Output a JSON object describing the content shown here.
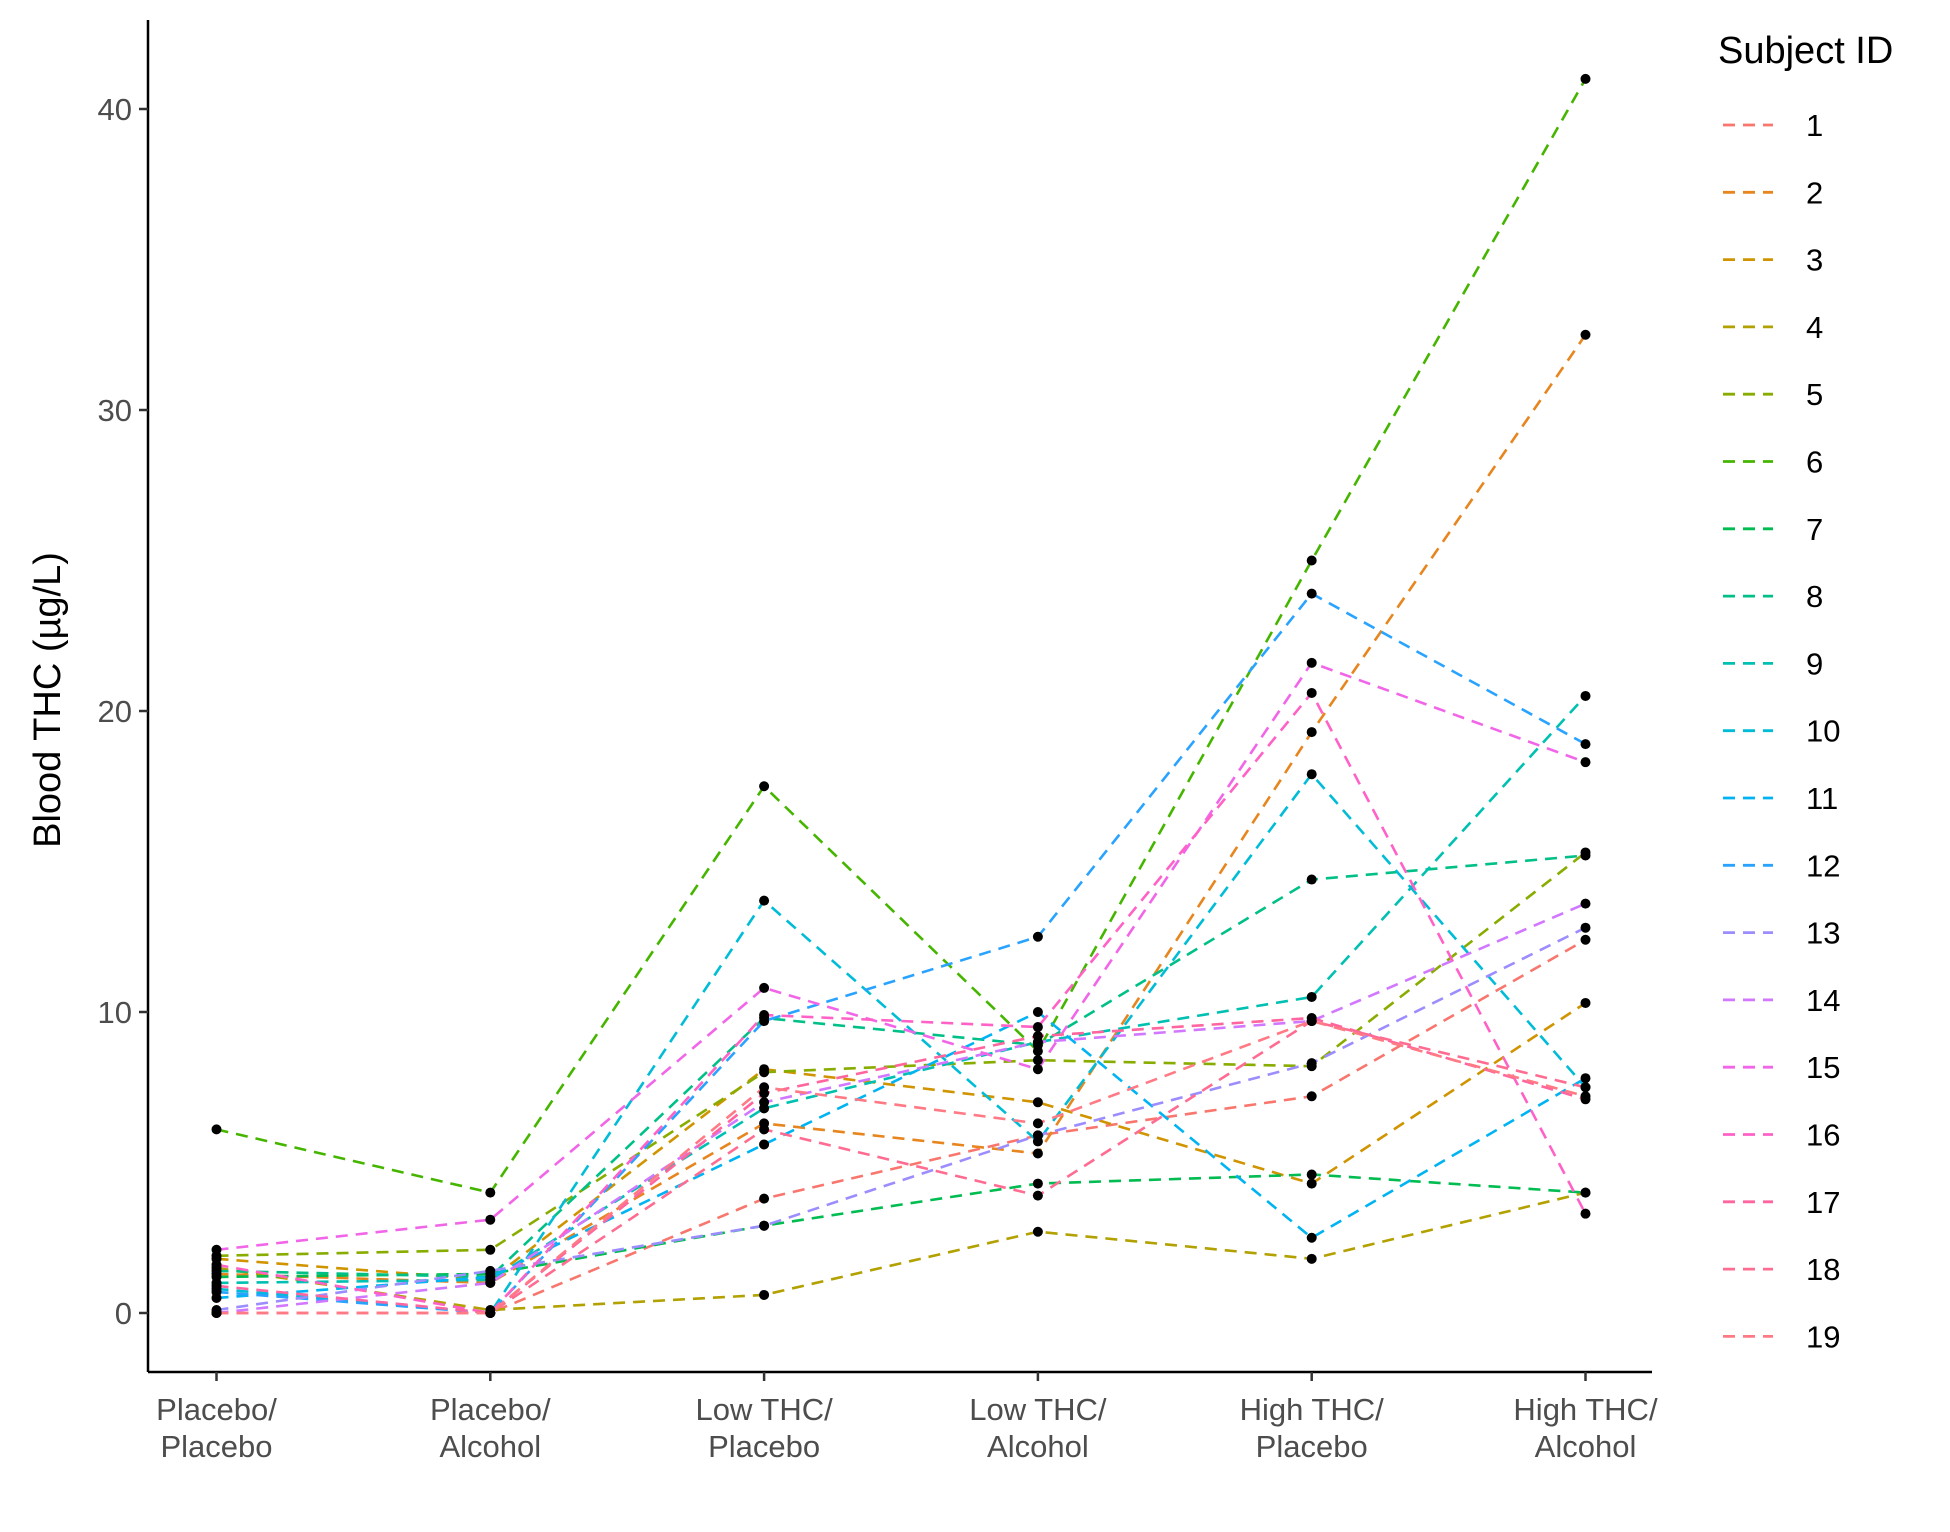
{
  "chart_data": {
    "type": "line",
    "ylabel": "Blood THC (µg/L)",
    "xlabel": "",
    "ylim": [
      -2,
      43
    ],
    "yticks": [
      0,
      10,
      20,
      30,
      40
    ],
    "grid": false,
    "legend_position": "right",
    "legend_title": "Subject ID",
    "line_style": "dashed",
    "marker_color": "#000000",
    "categories": [
      [
        "Placebo/",
        "Placebo"
      ],
      [
        "Placebo/",
        "Alcohol"
      ],
      [
        "Low THC/",
        "Placebo"
      ],
      [
        "Low THC/",
        "Alcohol"
      ],
      [
        "High THC/",
        "Placebo"
      ],
      [
        "High THC/",
        "Alcohol"
      ]
    ],
    "series": [
      {
        "name": "1",
        "color": "#F8766D",
        "values": [
          0.0,
          0.0,
          3.8,
          5.9,
          7.2,
          12.4
        ]
      },
      {
        "name": "2",
        "color": "#E7851E",
        "values": [
          1.3,
          1.0,
          6.3,
          5.3,
          19.3,
          32.5
        ]
      },
      {
        "name": "3",
        "color": "#D09400",
        "values": [
          1.8,
          1.1,
          8.1,
          7.0,
          4.3,
          10.3
        ]
      },
      {
        "name": "4",
        "color": "#B2A100",
        "values": [
          1.5,
          0.1,
          0.6,
          2.7,
          1.8,
          4.0
        ]
      },
      {
        "name": "5",
        "color": "#89AC00",
        "values": [
          1.9,
          2.1,
          8.0,
          8.4,
          8.2,
          15.3
        ]
      },
      {
        "name": "6",
        "color": "#45B500",
        "values": [
          6.1,
          4.0,
          17.5,
          8.7,
          25.0,
          41.0
        ]
      },
      {
        "name": "7",
        "color": "#00BC51",
        "values": [
          1.2,
          1.3,
          2.9,
          4.3,
          4.6,
          4.0
        ]
      },
      {
        "name": "8",
        "color": "#00C087",
        "values": [
          1.4,
          1.2,
          9.8,
          8.9,
          14.4,
          15.2
        ]
      },
      {
        "name": "9",
        "color": "#00C0B2",
        "values": [
          1.0,
          1.1,
          6.8,
          9.0,
          10.5,
          20.5
        ]
      },
      {
        "name": "10",
        "color": "#00BCD6",
        "values": [
          0.8,
          0.0,
          13.7,
          5.7,
          17.9,
          7.5
        ]
      },
      {
        "name": "11",
        "color": "#00B3F2",
        "values": [
          0.5,
          1.2,
          5.6,
          10.0,
          2.5,
          7.8
        ]
      },
      {
        "name": "12",
        "color": "#29A3FF",
        "values": [
          0.7,
          0.0,
          9.7,
          12.5,
          23.9,
          18.9
        ]
      },
      {
        "name": "13",
        "color": "#9C8DFF",
        "values": [
          0.1,
          1.4,
          2.9,
          5.9,
          8.3,
          12.8
        ]
      },
      {
        "name": "14",
        "color": "#D277FF",
        "values": [
          0.0,
          1.0,
          7.0,
          9.0,
          9.7,
          13.6
        ]
      },
      {
        "name": "15",
        "color": "#F166E8",
        "values": [
          2.1,
          3.1,
          10.8,
          8.1,
          21.6,
          18.3
        ]
      },
      {
        "name": "16",
        "color": "#FF61C7",
        "values": [
          1.6,
          0.0,
          9.9,
          9.5,
          20.6,
          3.3
        ]
      },
      {
        "name": "17",
        "color": "#FF659E",
        "values": [
          0.9,
          0.0,
          7.3,
          9.2,
          9.8,
          7.1
        ]
      },
      {
        "name": "18",
        "color": "#FF6C91",
        "values": [
          0.0,
          0.0,
          6.1,
          3.9,
          9.7,
          7.5
        ]
      },
      {
        "name": "19",
        "color": "#FF7A85",
        "values": [
          0.0,
          0.0,
          7.5,
          6.3,
          9.7,
          7.2
        ]
      }
    ]
  }
}
